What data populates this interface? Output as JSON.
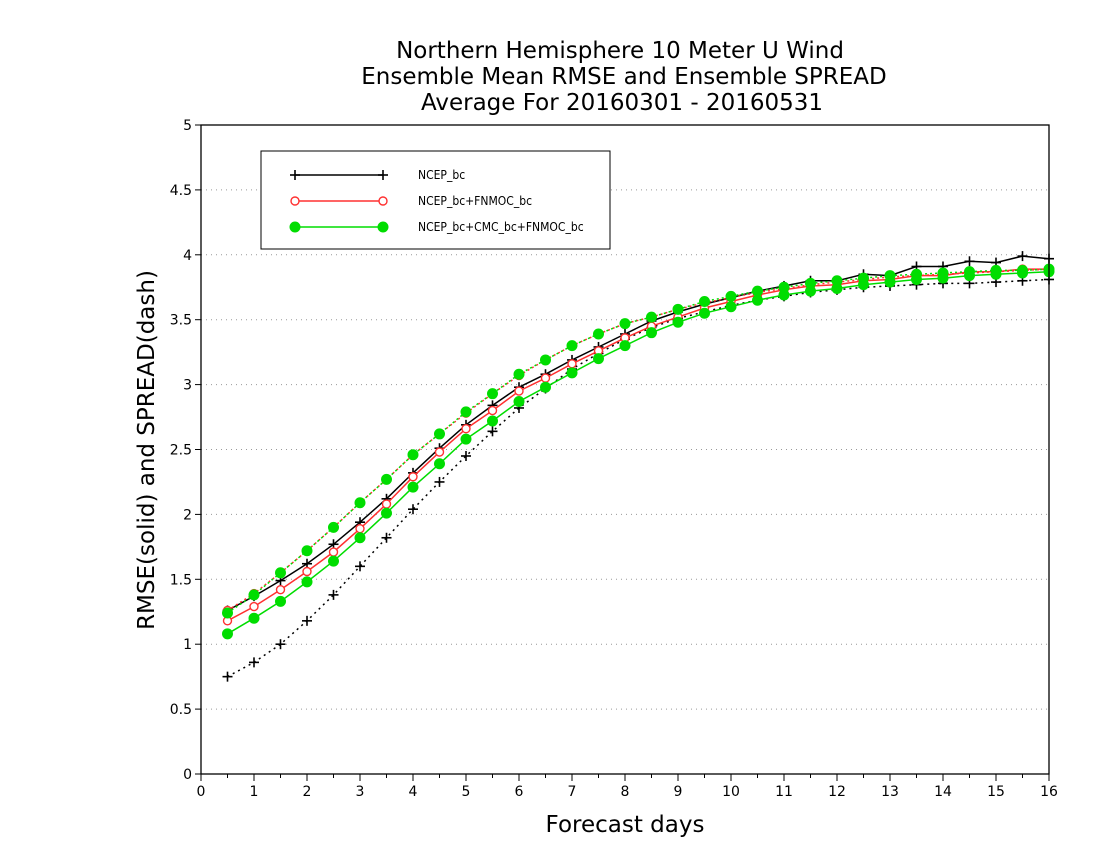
{
  "chart_data": {
    "type": "line",
    "title": [
      "Northern Hemisphere 10 Meter U Wind",
      "Ensemble Mean RMSE and Ensemble SPREAD",
      "Average For 20160301 - 20160531"
    ],
    "xlabel": "Forecast days",
    "ylabel": "RMSE(solid) and SPREAD(dash)",
    "xlim": [
      0,
      16
    ],
    "ylim": [
      0,
      5
    ],
    "xticks": [
      0,
      1,
      2,
      3,
      4,
      5,
      6,
      7,
      8,
      9,
      10,
      11,
      12,
      13,
      14,
      15,
      16
    ],
    "yticks": [
      0,
      0.5,
      1,
      1.5,
      2,
      2.5,
      3,
      3.5,
      4,
      4.5,
      5
    ],
    "ytick_labels": [
      "0",
      "0.5",
      "1",
      "1.5",
      "2",
      "2.5",
      "3",
      "3.5",
      "4",
      "4.5",
      "5"
    ],
    "grid": true,
    "legend_position": "top-left",
    "x": [
      0.5,
      1,
      1.5,
      2,
      2.5,
      3,
      3.5,
      4,
      4.5,
      5,
      5.5,
      6,
      6.5,
      7,
      7.5,
      8,
      8.5,
      9,
      9.5,
      10,
      10.5,
      11,
      11.5,
      12,
      12.5,
      13,
      13.5,
      14,
      14.5,
      15,
      15.5,
      16
    ],
    "series": [
      {
        "name": "NCEP_bc",
        "color": "#000000",
        "marker": "plus",
        "rmse": [
          1.26,
          1.37,
          1.49,
          1.62,
          1.77,
          1.94,
          2.12,
          2.32,
          2.51,
          2.69,
          2.84,
          2.98,
          3.08,
          3.19,
          3.29,
          3.39,
          3.49,
          3.56,
          3.62,
          3.67,
          3.72,
          3.76,
          3.8,
          3.8,
          3.85,
          3.84,
          3.91,
          3.91,
          3.95,
          3.94,
          3.99,
          3.97
        ],
        "spread": [
          0.75,
          0.86,
          1.0,
          1.18,
          1.38,
          1.6,
          1.82,
          2.04,
          2.25,
          2.45,
          2.64,
          2.82,
          2.97,
          3.12,
          3.24,
          3.35,
          3.44,
          3.51,
          3.56,
          3.61,
          3.65,
          3.68,
          3.71,
          3.73,
          3.75,
          3.76,
          3.77,
          3.78,
          3.78,
          3.79,
          3.8,
          3.81
        ]
      },
      {
        "name": "NCEP_bc+FNMOC_bc",
        "color": "#ff3030",
        "marker": "open-circle",
        "rmse": [
          1.18,
          1.29,
          1.42,
          1.56,
          1.71,
          1.89,
          2.08,
          2.29,
          2.48,
          2.66,
          2.8,
          2.95,
          3.05,
          3.16,
          3.26,
          3.36,
          3.45,
          3.52,
          3.59,
          3.64,
          3.69,
          3.73,
          3.76,
          3.77,
          3.8,
          3.81,
          3.84,
          3.84,
          3.87,
          3.87,
          3.89,
          3.89
        ],
        "spread": [
          1.26,
          1.39,
          1.55,
          1.72,
          1.9,
          2.09,
          2.27,
          2.46,
          2.62,
          2.78,
          2.93,
          3.07,
          3.19,
          3.3,
          3.39,
          3.47,
          3.52,
          3.58,
          3.63,
          3.67,
          3.71,
          3.74,
          3.77,
          3.79,
          3.81,
          3.83,
          3.84,
          3.85,
          3.86,
          3.87,
          3.88,
          3.89
        ]
      },
      {
        "name": "NCEP_bc+CMC_bc+FNMOC_bc",
        "color": "#00dd00",
        "marker": "filled-circle",
        "rmse": [
          1.08,
          1.2,
          1.33,
          1.48,
          1.64,
          1.82,
          2.01,
          2.21,
          2.39,
          2.58,
          2.72,
          2.87,
          2.98,
          3.09,
          3.2,
          3.3,
          3.4,
          3.48,
          3.55,
          3.6,
          3.65,
          3.69,
          3.72,
          3.74,
          3.77,
          3.79,
          3.81,
          3.82,
          3.84,
          3.85,
          3.86,
          3.87
        ],
        "spread": [
          1.24,
          1.38,
          1.55,
          1.72,
          1.9,
          2.09,
          2.27,
          2.46,
          2.62,
          2.79,
          2.93,
          3.08,
          3.19,
          3.3,
          3.39,
          3.47,
          3.52,
          3.58,
          3.64,
          3.68,
          3.72,
          3.75,
          3.78,
          3.8,
          3.82,
          3.84,
          3.85,
          3.86,
          3.87,
          3.88,
          3.88,
          3.89
        ]
      }
    ]
  }
}
